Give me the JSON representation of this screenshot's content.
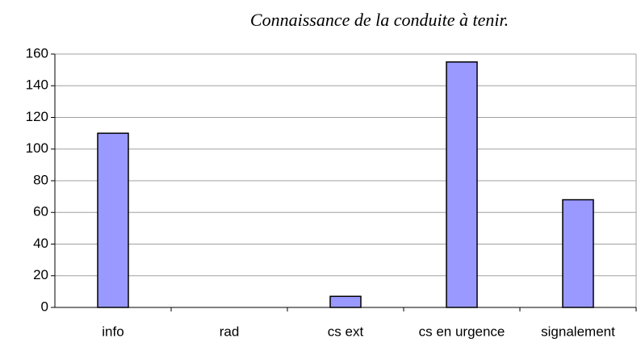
{
  "chart_data": {
    "type": "bar",
    "title": "Connaissance de la conduite à tenir.",
    "categories": [
      "info",
      "rad",
      "cs ext",
      "cs en urgence",
      "signalement"
    ],
    "values": [
      110,
      0,
      7,
      155,
      68
    ],
    "color": "#9999ff",
    "ylim": [
      0,
      160
    ],
    "yticks": [
      0,
      20,
      40,
      60,
      80,
      100,
      120,
      140,
      160
    ],
    "grid": true
  }
}
